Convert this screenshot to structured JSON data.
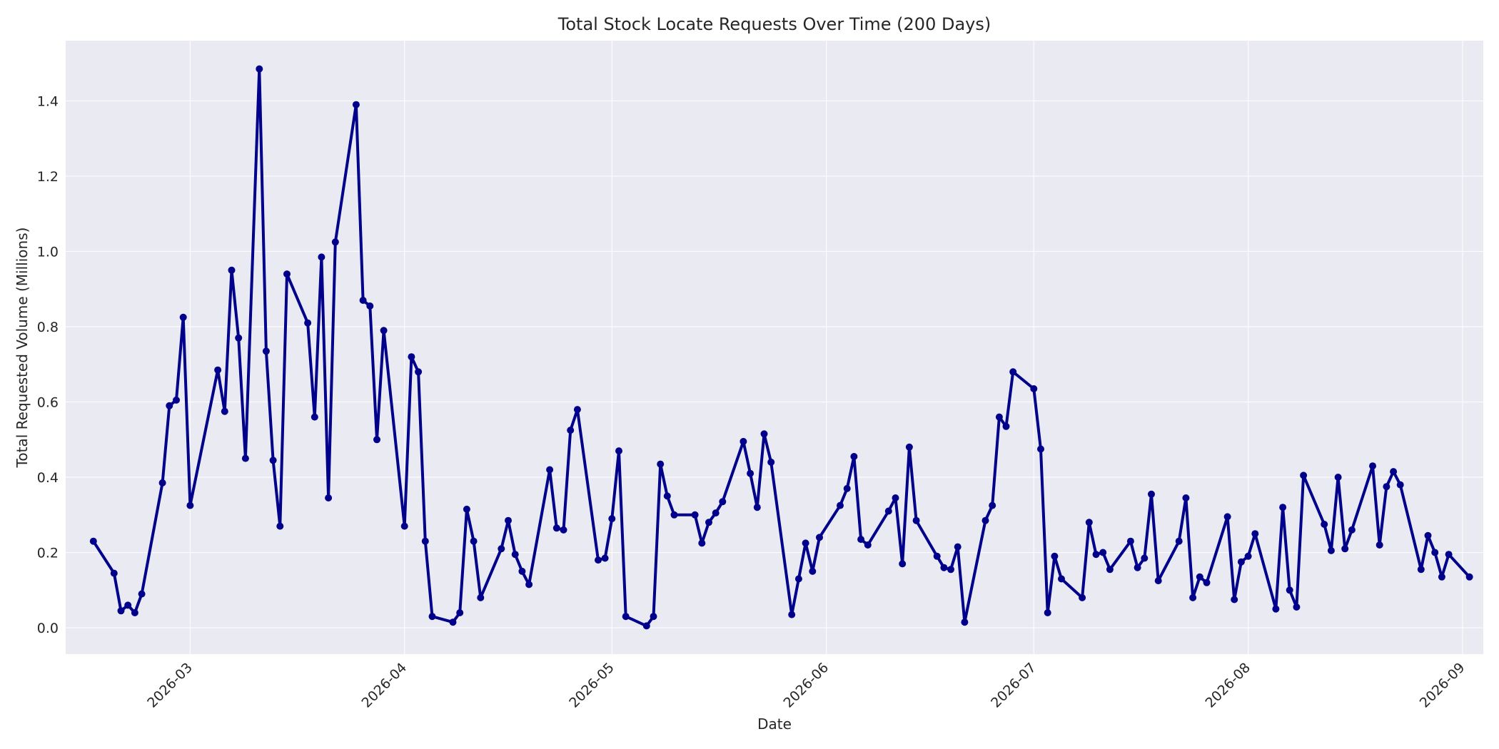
{
  "chart_data": {
    "type": "line",
    "title": "Total Stock Locate Requests Over Time (200 Days)",
    "xlabel": "Date",
    "ylabel": "Total Requested Volume (Millions)",
    "xlim": [
      "2026-02-11",
      "2026-09-04"
    ],
    "ylim": [
      -0.07,
      1.56
    ],
    "x_ticks": [
      "2026-03-01",
      "2026-04-01",
      "2026-05-01",
      "2026-06-01",
      "2026-07-01",
      "2026-08-01",
      "2026-09-01"
    ],
    "x_tick_labels": [
      "2026-03",
      "2026-04",
      "2026-05",
      "2026-06",
      "2026-07",
      "2026-08",
      "2026-09"
    ],
    "y_ticks": [
      0.0,
      0.2,
      0.4,
      0.6,
      0.8,
      1.0,
      1.2,
      1.4
    ],
    "y_tick_labels": [
      "0.0",
      "0.2",
      "0.4",
      "0.6",
      "0.8",
      "1.0",
      "1.2",
      "1.4"
    ],
    "grid": true,
    "colors": {
      "background": "#eaeaf2",
      "line": "#00008b",
      "grid": "#ffffff"
    },
    "series": [
      {
        "x": [
          "2026-02-15",
          "2026-02-18",
          "2026-02-19",
          "2026-02-20",
          "2026-02-21",
          "2026-02-22",
          "2026-02-25",
          "2026-02-26",
          "2026-02-27",
          "2026-02-28",
          "2026-03-01",
          "2026-03-05",
          "2026-03-06",
          "2026-03-07",
          "2026-03-08",
          "2026-03-09",
          "2026-03-11",
          "2026-03-12",
          "2026-03-13",
          "2026-03-14",
          "2026-03-15",
          "2026-03-18",
          "2026-03-19",
          "2026-03-20",
          "2026-03-21",
          "2026-03-22",
          "2026-03-25",
          "2026-03-26",
          "2026-03-27",
          "2026-03-28",
          "2026-03-29",
          "2026-04-01",
          "2026-04-02",
          "2026-04-03",
          "2026-04-04",
          "2026-04-05",
          "2026-04-08",
          "2026-04-09",
          "2026-04-10",
          "2026-04-11",
          "2026-04-12",
          "2026-04-15",
          "2026-04-16",
          "2026-04-17",
          "2026-04-18",
          "2026-04-19",
          "2026-04-22",
          "2026-04-23",
          "2026-04-24",
          "2026-04-25",
          "2026-04-26",
          "2026-04-29",
          "2026-04-30",
          "2026-05-01",
          "2026-05-02",
          "2026-05-03",
          "2026-05-06",
          "2026-05-07",
          "2026-05-08",
          "2026-05-09",
          "2026-05-10",
          "2026-05-13",
          "2026-05-14",
          "2026-05-15",
          "2026-05-16",
          "2026-05-17",
          "2026-05-20",
          "2026-05-21",
          "2026-05-22",
          "2026-05-23",
          "2026-05-24",
          "2026-05-27",
          "2026-05-28",
          "2026-05-29",
          "2026-05-30",
          "2026-05-31",
          "2026-06-03",
          "2026-06-04",
          "2026-06-05",
          "2026-06-06",
          "2026-06-07",
          "2026-06-10",
          "2026-06-11",
          "2026-06-12",
          "2026-06-13",
          "2026-06-14",
          "2026-06-17",
          "2026-06-18",
          "2026-06-19",
          "2026-06-20",
          "2026-06-21",
          "2026-06-24",
          "2026-06-25",
          "2026-06-26",
          "2026-06-27",
          "2026-06-28",
          "2026-07-01",
          "2026-07-02",
          "2026-07-03",
          "2026-07-04",
          "2026-07-05",
          "2026-07-08",
          "2026-07-09",
          "2026-07-10",
          "2026-07-11",
          "2026-07-12",
          "2026-07-15",
          "2026-07-16",
          "2026-07-17",
          "2026-07-18",
          "2026-07-19",
          "2026-07-22",
          "2026-07-23",
          "2026-07-24",
          "2026-07-25",
          "2026-07-26",
          "2026-07-29",
          "2026-07-30",
          "2026-07-31",
          "2026-08-01",
          "2026-08-02",
          "2026-08-05",
          "2026-08-06",
          "2026-08-07",
          "2026-08-08",
          "2026-08-09",
          "2026-08-12",
          "2026-08-13",
          "2026-08-14",
          "2026-08-15",
          "2026-08-16",
          "2026-08-19",
          "2026-08-20",
          "2026-08-21",
          "2026-08-22",
          "2026-08-23",
          "2026-08-26",
          "2026-08-27",
          "2026-08-28",
          "2026-08-29",
          "2026-08-30",
          "2026-09-02"
        ],
        "values": [
          0.23,
          0.145,
          0.045,
          0.06,
          0.04,
          0.09,
          0.385,
          0.59,
          0.605,
          0.825,
          0.325,
          0.685,
          0.575,
          0.95,
          0.77,
          0.45,
          1.485,
          0.735,
          0.445,
          0.27,
          0.94,
          0.81,
          0.56,
          0.985,
          0.345,
          1.025,
          1.39,
          0.87,
          0.855,
          0.5,
          0.79,
          0.27,
          0.72,
          0.68,
          0.23,
          0.03,
          0.015,
          0.04,
          0.315,
          0.23,
          0.08,
          0.21,
          0.285,
          0.195,
          0.15,
          0.115,
          0.42,
          0.265,
          0.26,
          0.525,
          0.58,
          0.18,
          0.185,
          0.29,
          0.47,
          0.03,
          0.005,
          0.03,
          0.435,
          0.35,
          0.3,
          0.3,
          0.225,
          0.28,
          0.305,
          0.335,
          0.495,
          0.41,
          0.32,
          0.515,
          0.44,
          0.035,
          0.13,
          0.225,
          0.15,
          0.24,
          0.325,
          0.37,
          0.455,
          0.235,
          0.22,
          0.31,
          0.345,
          0.17,
          0.48,
          0.285,
          0.19,
          0.16,
          0.155,
          0.215,
          0.015,
          0.285,
          0.325,
          0.56,
          0.535,
          0.68,
          0.635,
          0.475,
          0.04,
          0.19,
          0.13,
          0.08,
          0.28,
          0.195,
          0.2,
          0.155,
          0.23,
          0.16,
          0.185,
          0.355,
          0.125,
          0.23,
          0.345,
          0.08,
          0.135,
          0.12,
          0.295,
          0.075,
          0.175,
          0.19,
          0.25,
          0.05,
          0.32,
          0.1,
          0.055,
          0.405,
          0.275,
          0.205,
          0.4,
          0.21,
          0.26,
          0.43,
          0.22,
          0.375,
          0.415,
          0.38,
          0.155,
          0.245,
          0.2,
          0.135,
          0.195,
          0.135
        ]
      }
    ]
  }
}
